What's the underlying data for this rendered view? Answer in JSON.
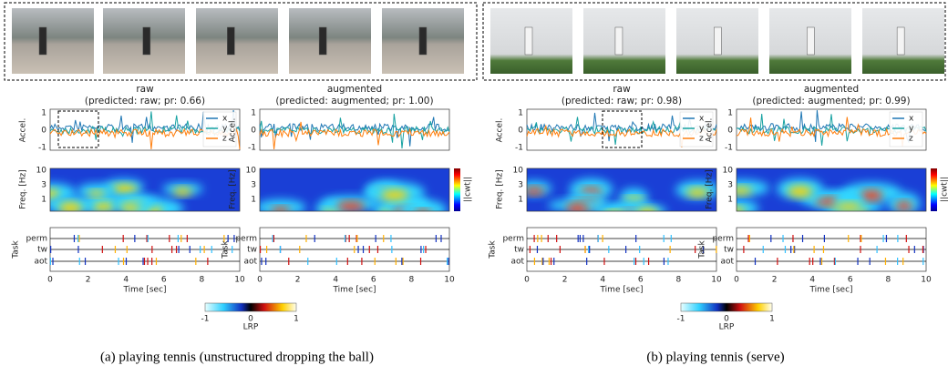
{
  "panels": [
    {
      "caption": "(a) playing tennis (unstructured dropping the ball)",
      "plots": [
        {
          "title": "raw",
          "subtitle": "(predicted: raw; pr: 0.66)",
          "legend": true
        },
        {
          "title": "augmented",
          "subtitle": "(predicted: augmented; pr: 1.00)",
          "legend": false
        }
      ]
    },
    {
      "caption": "(b) playing tennis (serve)",
      "plots": [
        {
          "title": "raw",
          "subtitle": "(predicted: raw; pr: 0.98)",
          "legend": true
        },
        {
          "title": "augmented",
          "subtitle": "(predicted: augmented; pr: 0.99)",
          "legend": true
        }
      ]
    }
  ],
  "axes": {
    "accel_label": "Accel.",
    "accel_ticks": [
      1,
      0,
      -1
    ],
    "freq_label": "Freq. [Hz]",
    "freq_ticks": [
      10,
      3,
      1
    ],
    "task_label": "Task",
    "task_rows": [
      "perm",
      "tw",
      "aot"
    ],
    "time_label": "Time [sec]",
    "time_ticks": [
      0,
      2,
      4,
      6,
      8,
      10
    ],
    "legend": [
      "x",
      "y",
      "z"
    ],
    "cwt_label": "||cwt||",
    "lrp_label": "LRP",
    "lrp_ticks": [
      -1,
      0,
      1
    ]
  }
}
